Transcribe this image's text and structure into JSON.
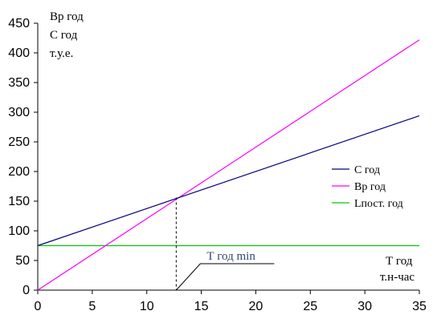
{
  "chart_data": {
    "type": "line",
    "title": "",
    "ylabel_lines": [
      "Вр год",
      "С год",
      "т.у.е."
    ],
    "xlabel_lines": [
      "Т год",
      "т.н-час"
    ],
    "xlim": [
      0,
      35
    ],
    "ylim": [
      0,
      450
    ],
    "x_ticks": [
      0,
      5,
      10,
      15,
      20,
      25,
      30,
      35
    ],
    "y_ticks": [
      0,
      50,
      100,
      150,
      200,
      250,
      300,
      350,
      400,
      450
    ],
    "grid": false,
    "legend_position": "right",
    "series": [
      {
        "name": "С год",
        "color": "#000080",
        "x": [
          0,
          35
        ],
        "y": [
          75,
          294
        ]
      },
      {
        "name": "Вр год",
        "color": "#ff00ff",
        "x": [
          0,
          35
        ],
        "y": [
          0,
          422
        ]
      },
      {
        "name": "Lпост. год",
        "color": "#00cc00",
        "x": [
          0,
          35
        ],
        "y": [
          75,
          75
        ]
      }
    ],
    "break_even": {
      "x": 12.7,
      "y": 156
    },
    "annotation": {
      "text": "Т год min",
      "color": "#2e4a7a"
    }
  }
}
